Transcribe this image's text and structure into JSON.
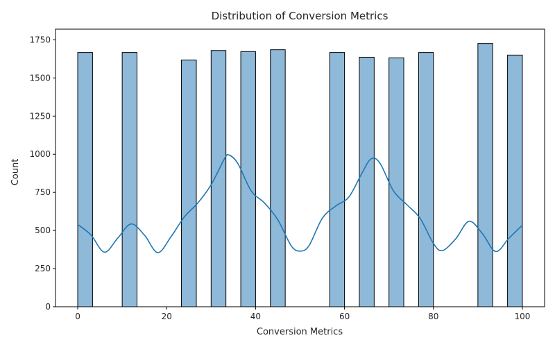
{
  "chart_data": {
    "type": "bar",
    "title": "Distribution of Conversion Metrics",
    "xlabel": "Conversion Metrics",
    "ylabel": "Count",
    "xlim": [
      -5,
      105
    ],
    "ylim": [
      0,
      1820
    ],
    "x_ticks": [
      0,
      20,
      40,
      60,
      80,
      100
    ],
    "y_ticks": [
      0,
      250,
      500,
      750,
      1000,
      1250,
      1500,
      1750
    ],
    "grid": false,
    "legend": "none",
    "bar_color": "#8fb9d9",
    "edge_color": "#000000",
    "kde_color": "#1f77b4",
    "bins": [
      {
        "x0": 0.0,
        "x1": 3.33,
        "count": 1667
      },
      {
        "x0": 10.0,
        "x1": 13.33,
        "count": 1667
      },
      {
        "x0": 23.33,
        "x1": 26.67,
        "count": 1618
      },
      {
        "x0": 30.0,
        "x1": 33.33,
        "count": 1680
      },
      {
        "x0": 36.67,
        "x1": 40.0,
        "count": 1673
      },
      {
        "x0": 43.33,
        "x1": 46.67,
        "count": 1685
      },
      {
        "x0": 56.67,
        "x1": 60.0,
        "count": 1667
      },
      {
        "x0": 63.33,
        "x1": 66.67,
        "count": 1636
      },
      {
        "x0": 70.0,
        "x1": 73.33,
        "count": 1632
      },
      {
        "x0": 76.67,
        "x1": 80.0,
        "count": 1667
      },
      {
        "x0": 90.0,
        "x1": 93.33,
        "count": 1726
      },
      {
        "x0": 96.67,
        "x1": 100.0,
        "count": 1650
      }
    ],
    "kde": {
      "x": [
        0,
        3,
        6,
        9,
        12,
        15,
        18,
        21,
        24,
        27,
        30,
        33,
        34,
        36,
        39,
        42,
        45,
        48,
        50,
        52,
        55,
        58,
        61,
        64,
        66,
        68,
        71,
        74,
        77,
        80,
        82,
        85,
        88,
        91,
        94,
        97,
        100
      ],
      "y": [
        540,
        470,
        358,
        450,
        543,
        470,
        355,
        460,
        590,
        680,
        800,
        970,
        995,
        940,
        760,
        680,
        570,
        400,
        365,
        400,
        580,
        660,
        720,
        880,
        970,
        940,
        760,
        670,
        580,
        415,
        368,
        445,
        560,
        480,
        362,
        450,
        535
      ]
    }
  }
}
